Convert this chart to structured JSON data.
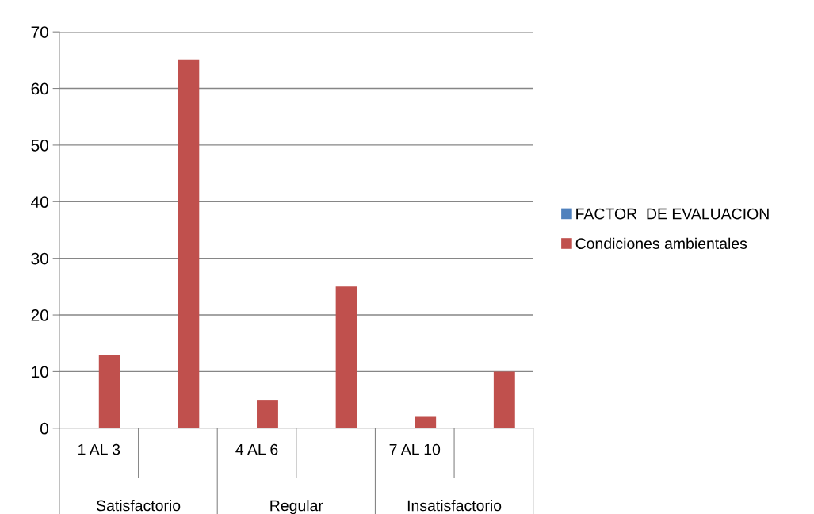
{
  "chart_data": {
    "type": "bar",
    "categories": [
      "1 AL 3",
      null,
      "4 AL 6",
      null,
      "7 AL 10",
      null
    ],
    "annotations": [
      "Satisfactorio",
      "Regular",
      "Insatisfactorio"
    ],
    "series": [
      {
        "name": "FACTOR  DE EVALUACION",
        "color": "#4f81bd",
        "values": [
          null,
          null,
          null,
          null,
          null,
          null
        ]
      },
      {
        "name": "Condiciones ambientales",
        "color": "#c0504d",
        "values": [
          13,
          65,
          5,
          25,
          2,
          10
        ]
      }
    ],
    "ylim": [
      0,
      70
    ],
    "yticks": [
      0,
      10,
      20,
      30,
      40,
      50,
      60,
      70
    ],
    "grid": "y",
    "legend": "right"
  }
}
